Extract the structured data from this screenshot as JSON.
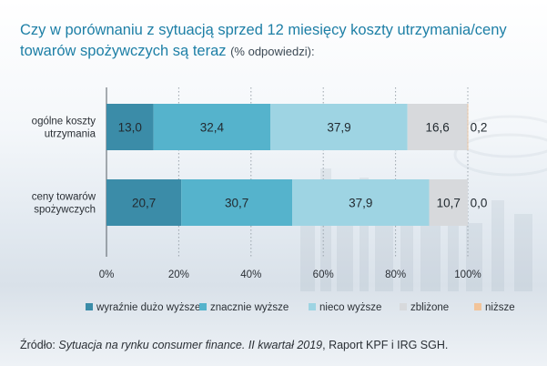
{
  "title_main": "Czy w porównaniu z sytuacją sprzed 12 miesięcy koszty utrzymania/ceny towarów spożywczych są teraz",
  "title_sub": "(% odpowiedzi):",
  "source": {
    "prefix": "Źródło: ",
    "italic": "Sytuacja na rynku consumer finance. II kwartał 2019",
    "suffix": ", Raport KPF i IRG SGH."
  },
  "colors": {
    "wyraznie_duzo_wyzsze": "#3b8ca8",
    "znacznie_wyzsze": "#55b3cc",
    "nieco_wyzsze": "#9ed4e3",
    "zblizone": "#d7d9dc",
    "nizsze": "#f2c49a"
  },
  "chart_data": {
    "type": "bar",
    "orientation": "horizontal",
    "stacked": true,
    "categories": [
      [
        "ogólne koszty",
        "utrzymania"
      ],
      [
        "ceny towarów",
        "spożywczych"
      ]
    ],
    "series": [
      {
        "name": "wyraźnie dużo wyższe",
        "values": [
          13.0,
          20.7
        ]
      },
      {
        "name": "znacznie wyższe",
        "values": [
          32.4,
          30.7
        ]
      },
      {
        "name": "nieco wyższe",
        "values": [
          37.9,
          37.9
        ]
      },
      {
        "name": "zbliżone",
        "values": [
          16.6,
          10.7
        ]
      },
      {
        "name": "niższe",
        "values": [
          0.2,
          0.0
        ]
      }
    ],
    "value_labels": [
      [
        "13,0",
        "32,4",
        "37,9",
        "16,6",
        "0,2"
      ],
      [
        "20,7",
        "30,7",
        "37,9",
        "10,7",
        "0,0"
      ]
    ],
    "xlim": [
      0,
      100
    ],
    "x_ticks": [
      "0%",
      "20%",
      "40%",
      "60%",
      "80%",
      "100%"
    ],
    "legend_position": "bottom",
    "grid": "vertical dotted"
  }
}
